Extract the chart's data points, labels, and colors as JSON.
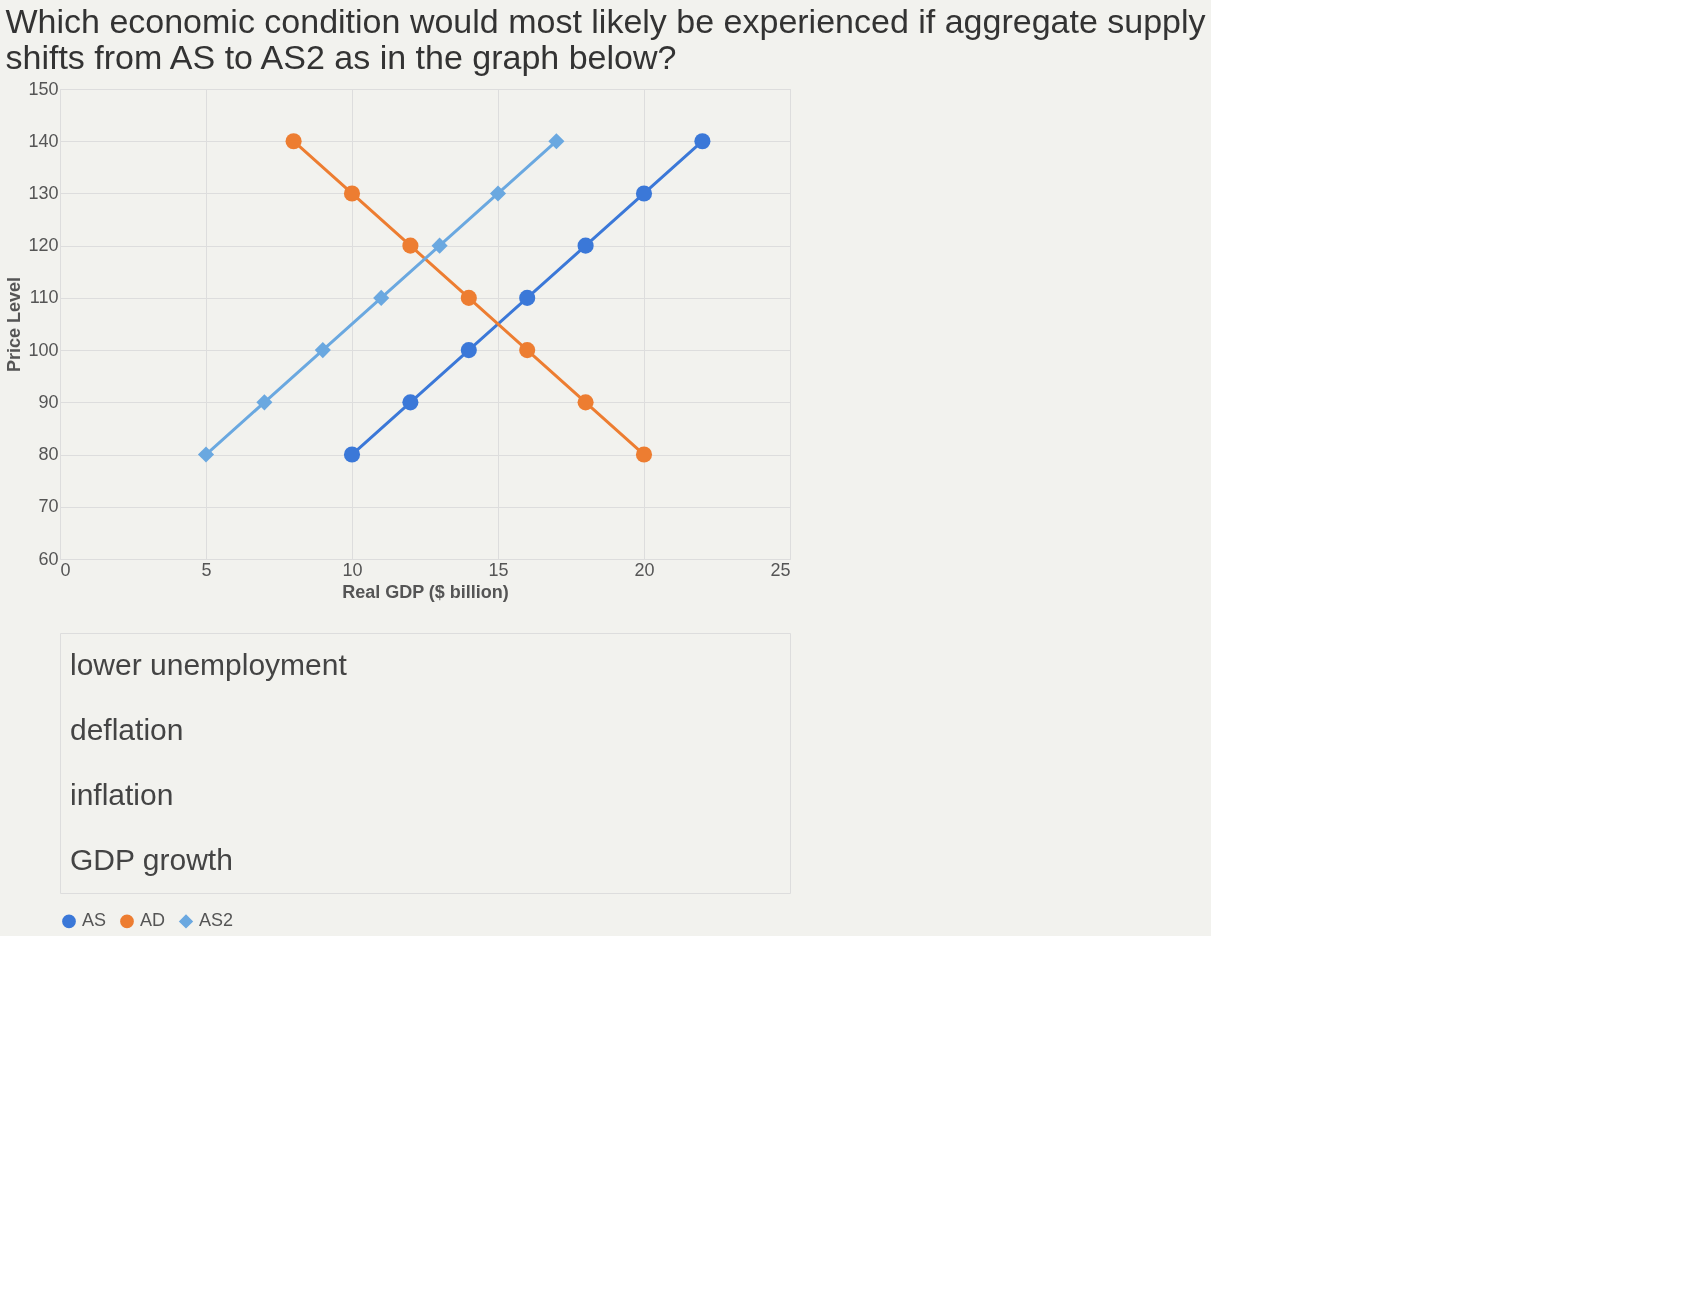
{
  "chart_data": {
    "type": "line",
    "title": "Which economic condition would most likely be experienced if aggregate supply shifts from AS to AS2 as in the graph below?",
    "xlabel": "Real GDP ($ billion)",
    "ylabel": "Price Level",
    "series": [
      {
        "name": "AS",
        "color": "#3b78d8",
        "marker": "circle",
        "x": [
          10,
          12,
          14,
          16,
          18,
          20,
          22
        ],
        "values": [
          80,
          90,
          100,
          110,
          120,
          130,
          140
        ]
      },
      {
        "name": "AD",
        "color": "#ed7d31",
        "marker": "circle",
        "x": [
          8,
          10,
          12,
          14,
          16,
          18,
          20
        ],
        "values": [
          140,
          130,
          120,
          110,
          100,
          90,
          80
        ]
      },
      {
        "name": "AS2",
        "color": "#6aa8e0",
        "marker": "diamond",
        "x": [
          5,
          7,
          9,
          11,
          13,
          15,
          17
        ],
        "values": [
          80,
          90,
          100,
          110,
          120,
          130,
          140
        ]
      }
    ],
    "xlim": [
      0,
      25
    ],
    "xticks": [
      0,
      5,
      10,
      15,
      20,
      25
    ],
    "ylim": [
      60,
      150
    ],
    "yticks": [
      60,
      70,
      80,
      90,
      100,
      110,
      120,
      130,
      140,
      150
    ],
    "grid": true,
    "legend": "bottom",
    "annotations": [
      "lower unemployment",
      "deflation",
      "inflation",
      "GDP growth"
    ]
  }
}
